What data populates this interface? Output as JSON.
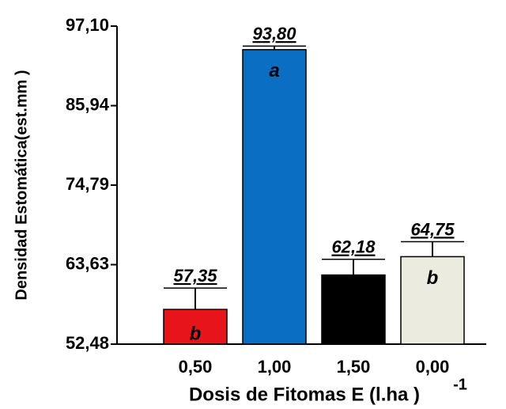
{
  "chart_data": {
    "type": "bar",
    "y_label": "Densidad Estomática(est.mm )",
    "x_label": "Dosis de Fitomas E (l.ha )",
    "x_label_superscript": "-1",
    "categories": [
      "0,50",
      "1,00",
      "1,50",
      "0,00"
    ],
    "values": [
      57.35,
      93.8,
      62.18,
      64.75
    ],
    "value_labels": [
      "57,35",
      "93,80",
      "62,18",
      "64,75"
    ],
    "errors": [
      3.0,
      0.5,
      2.2,
      2.1
    ],
    "letters": [
      "b",
      "a",
      "b",
      "b"
    ],
    "colors": [
      "#e8141b",
      "#0a6fc2",
      "#000000",
      "#ecebe0"
    ],
    "ylim": [
      52.48,
      97.1
    ],
    "yticks": [
      {
        "value": 52.48,
        "label": "52,48"
      },
      {
        "value": 63.63,
        "label": "63,63"
      },
      {
        "value": 74.79,
        "label": "74,79"
      },
      {
        "value": 85.94,
        "label": "85,94"
      },
      {
        "value": 97.1,
        "label": "97,10"
      }
    ],
    "grid": false
  }
}
